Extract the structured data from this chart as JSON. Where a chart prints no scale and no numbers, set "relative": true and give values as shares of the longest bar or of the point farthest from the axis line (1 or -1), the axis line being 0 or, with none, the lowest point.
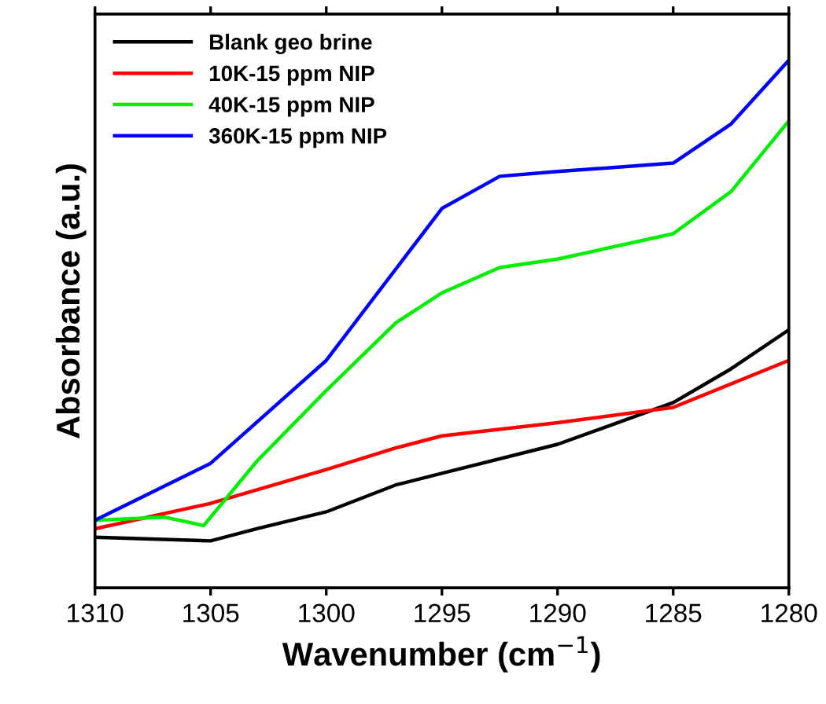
{
  "chart_data": {
    "type": "line",
    "relative": true,
    "xlabel": "Wavenumber (cm$^{−1}$)",
    "ylabel": "Absorbance (a.u.)",
    "xlim": [
      1310,
      1280
    ],
    "xticks": [
      1310,
      1305,
      1300,
      1295,
      1290,
      1285,
      1280
    ],
    "legend": "top left",
    "grid": false,
    "marker": "none",
    "line_style": "solid",
    "series": [
      {
        "name": "Blank geo brine",
        "color": "#000000",
        "x": [
          1310,
          1305,
          1303,
          1300,
          1297,
          1295,
          1290,
          1285,
          1282.5,
          1280
        ],
        "values": [
          0.096,
          0.089,
          0.112,
          0.144,
          0.195,
          0.217,
          0.272,
          0.351,
          0.415,
          0.489
        ]
      },
      {
        "name": "10K-15 ppm NIP",
        "color": "#ff0000",
        "x": [
          1310,
          1305,
          1300,
          1297,
          1295,
          1290,
          1285,
          1280
        ],
        "values": [
          0.112,
          0.16,
          0.224,
          0.265,
          0.288,
          0.313,
          0.342,
          0.431
        ]
      },
      {
        "name": "40K-15 ppm NIP",
        "color": "#00ee00",
        "x": [
          1310,
          1307,
          1305.3,
          1303,
          1300,
          1297,
          1295,
          1292.5,
          1290,
          1285,
          1282.5,
          1280
        ],
        "values": [
          0.128,
          0.134,
          0.118,
          0.24,
          0.374,
          0.502,
          0.559,
          0.607,
          0.623,
          0.671,
          0.751,
          0.885
        ]
      },
      {
        "name": "360K-15 ppm NIP",
        "color": "#0000ff",
        "x": [
          1310,
          1305,
          1300,
          1295,
          1292.5,
          1290,
          1285,
          1282.5,
          1280
        ],
        "values": [
          0.128,
          0.236,
          0.431,
          0.719,
          0.78,
          0.789,
          0.805,
          0.879,
          1.0
        ]
      }
    ]
  }
}
